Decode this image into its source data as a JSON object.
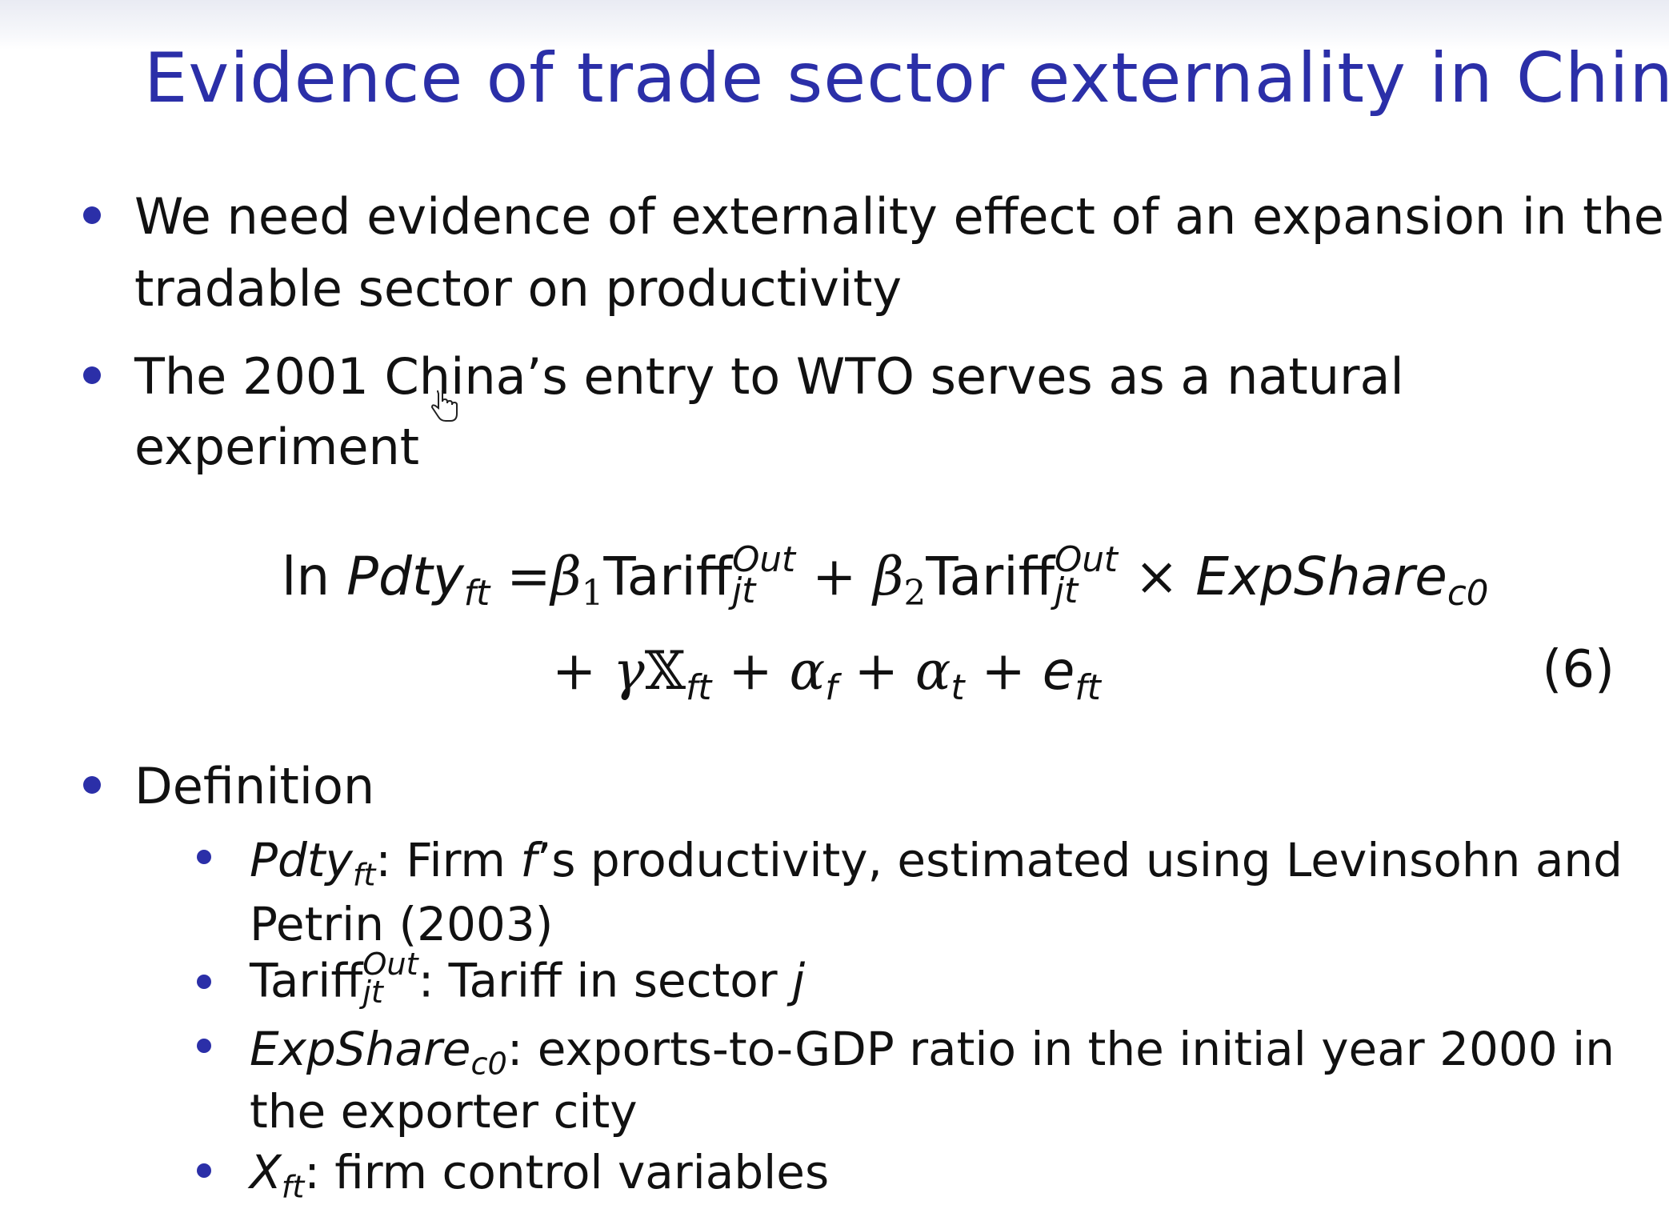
{
  "slide": {
    "title": "Evidence of trade sector externality in China",
    "bullets": {
      "b1_line1": "We need evidence of externality effect of an expansion in the",
      "b1_line2": "tradable sector on productivity",
      "b2_line1": "The 2001 China’s entry to WTO serves as a natural",
      "b2_line2": "experiment",
      "b3": "Definition"
    },
    "equation": {
      "ln": "ln",
      "pdty": "Pdty",
      "ft": "ft",
      "eq": "=",
      "beta1": "β",
      "one": "1",
      "tariff": "Tariff",
      "out": "Out",
      "jt": "jt",
      "plus": "+",
      "beta2": "β",
      "two": "2",
      "times": "×",
      "expshare": "ExpShare",
      "c0": "c0",
      "gamma": "γ",
      "X": "𝕏",
      "alpha": "α",
      "f": "f",
      "t": "t",
      "e": "e",
      "number": "(6)"
    },
    "definitions": {
      "d1_term": "Pdty",
      "d1_sub": "ft",
      "d1_text_a": ": Firm ",
      "d1_f": "f",
      "d1_text_b": "’s productivity, estimated using Levinsohn and",
      "d1_line2": "Petrin (2003)",
      "d2_term": "Tariff",
      "d2_sup": "Out",
      "d2_sub": "jt",
      "d2_text": ": Tariff in sector ",
      "d2_j": "j",
      "d3_term": "ExpShare",
      "d3_sub": "c0",
      "d3_text": ": exports-to-GDP ratio in the initial year 2000 in",
      "d3_line2": "the exporter city",
      "d4_term": "X",
      "d4_sub": "ft",
      "d4_text": ": firm control variables"
    }
  },
  "colors": {
    "title": "#2b2fa8",
    "bullet": "#2b2fa8",
    "text": "#111111"
  },
  "icons": {
    "cursor": "hand-pointer-icon"
  }
}
